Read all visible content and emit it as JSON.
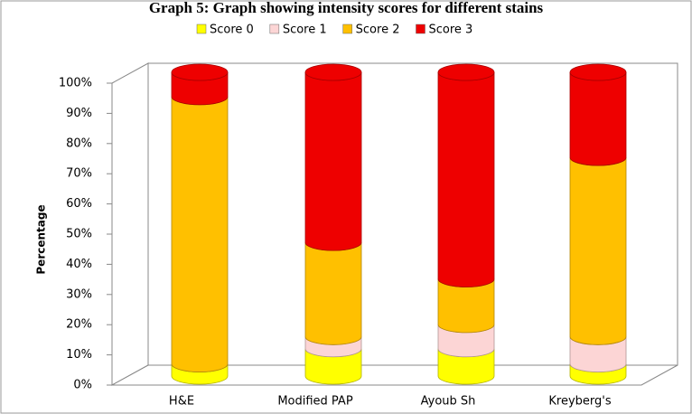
{
  "chart_data": {
    "type": "stacked-cylinder",
    "title": "Graph 5: Graph showing intensity scores for different stains",
    "y_label": "Percentage",
    "categories": [
      "H&E",
      "Modified PAP",
      "Ayoub Sh",
      "Kreyberg's"
    ],
    "series": [
      {
        "name": "Score 0",
        "color": "#ffff00",
        "values": [
          4,
          9,
          9,
          4
        ]
      },
      {
        "name": "Score 1",
        "color": "#fcd5d5",
        "values": [
          0,
          4,
          8,
          9
        ]
      },
      {
        "name": "Score 2",
        "color": "#ffc000",
        "values": [
          88,
          31,
          15,
          59
        ]
      },
      {
        "name": "Score 3",
        "color": "#ee0000",
        "values": [
          8,
          56,
          68,
          28
        ]
      }
    ],
    "ylim": [
      0,
      100
    ],
    "yticks": [
      {
        "value": 0,
        "label": "0%"
      },
      {
        "value": 10,
        "label": "10%"
      },
      {
        "value": 20,
        "label": "20%"
      },
      {
        "value": 30,
        "label": "30%"
      },
      {
        "value": 40,
        "label": "40%"
      },
      {
        "value": 50,
        "label": "50%"
      },
      {
        "value": 60,
        "label": "60%"
      },
      {
        "value": 70,
        "label": "70%"
      },
      {
        "value": 80,
        "label": "80%"
      },
      {
        "value": 90,
        "label": "90%"
      },
      {
        "value": 100,
        "label": "100%"
      }
    ],
    "legend": "top"
  }
}
